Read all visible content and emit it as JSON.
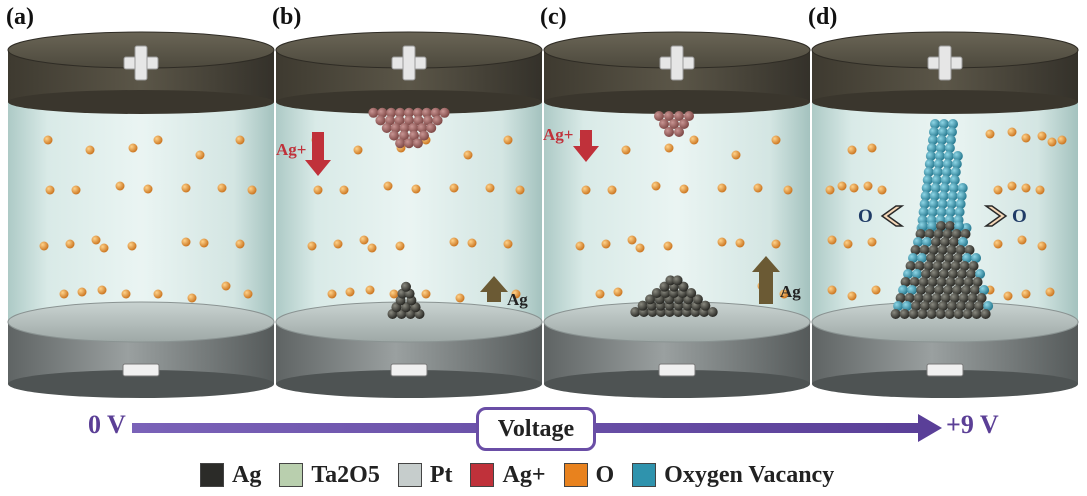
{
  "panels": [
    {
      "label": "(a)",
      "top_sign": "+",
      "bottom_sign": "−",
      "annotations": []
    },
    {
      "label": "(b)",
      "top_sign": "+",
      "bottom_sign": "−",
      "annotations": [
        "Ag+",
        "Ag"
      ]
    },
    {
      "label": "(c)",
      "top_sign": "+",
      "bottom_sign": "−",
      "annotations": [
        "Ag+",
        "Ag"
      ]
    },
    {
      "label": "(d)",
      "top_sign": "+",
      "bottom_sign": "−",
      "annotations": [
        "O",
        "O"
      ]
    }
  ],
  "axis": {
    "start": "0 V",
    "end": "+9 V",
    "label": "Voltage"
  },
  "legend": [
    {
      "label": "Ag",
      "color": "#2b2b28"
    },
    {
      "label": "Ta2O5",
      "color": "#b9cfae"
    },
    {
      "label": "Pt",
      "color": "#c6cdcc"
    },
    {
      "label": "Ag+",
      "color": "#c0313a"
    },
    {
      "label": "O",
      "color": "#e8821e"
    },
    {
      "label": "Oxygen Vacancy",
      "color": "#2f93ad"
    }
  ],
  "colors": {
    "top_electrode": "#4a463b",
    "bottom_electrode": "#6e7373",
    "ag_ion_cluster": "#9a5c5a",
    "arrow_down": "#c0313a",
    "arrow_up": "#6b5a34",
    "axis_arrow": "#6a4ea6",
    "o_label": "#1f3b66"
  }
}
